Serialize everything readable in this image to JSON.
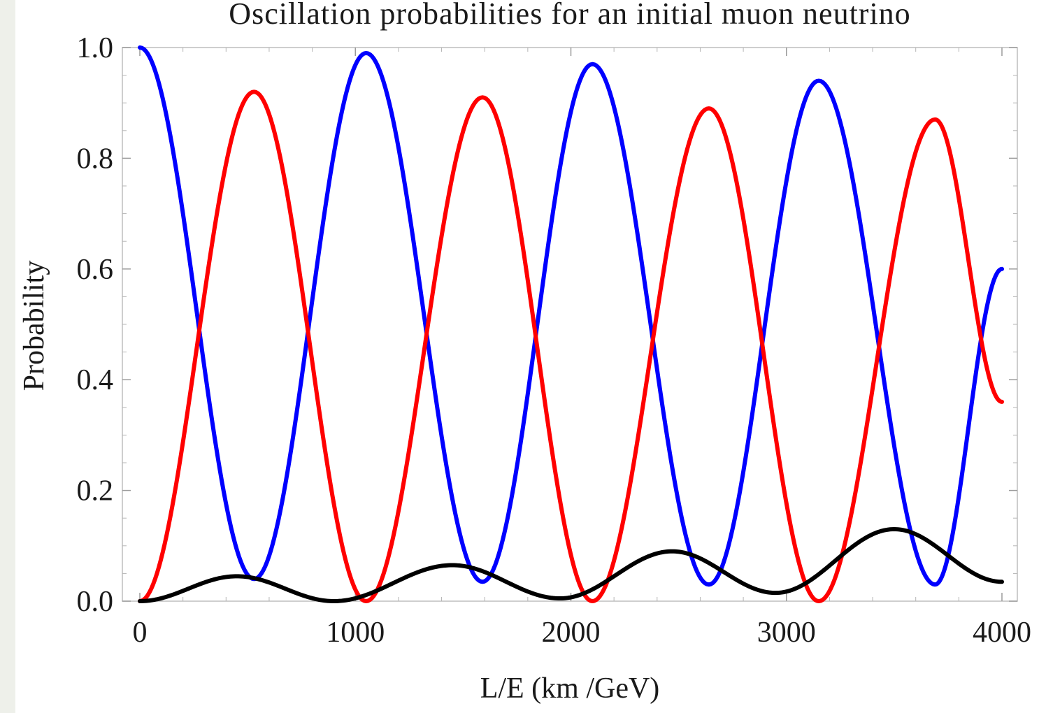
{
  "chart_data": {
    "type": "line",
    "title": "Oscillation probabilities for an initial muon neutrino",
    "xlabel": "L/E (km /GeV)",
    "ylabel": "Probability",
    "xlim": [
      0,
      4000
    ],
    "ylim": [
      0,
      1.0
    ],
    "x_ticks": [
      "0",
      "1000",
      "2000",
      "3000",
      "4000"
    ],
    "y_ticks": [
      "0.0",
      "0.2",
      "0.4",
      "0.6",
      "0.8",
      "1.0"
    ],
    "grid": false,
    "legend": "none",
    "colors": [
      "#0000ff",
      "#ff0000",
      "#000000"
    ],
    "series": [
      {
        "color": "#0000ff",
        "x": [
          0,
          530,
          1050,
          1590,
          2100,
          2640,
          3150,
          3690,
          4000
        ],
        "y": [
          1.0,
          0.04,
          0.99,
          0.035,
          0.97,
          0.03,
          0.94,
          0.03,
          0.6
        ]
      },
      {
        "color": "#ff0000",
        "x": [
          0,
          530,
          1050,
          1590,
          2100,
          2640,
          3150,
          3690,
          4000
        ],
        "y": [
          0.0,
          0.92,
          0.0,
          0.91,
          0.0,
          0.89,
          0.0,
          0.87,
          0.36
        ]
      },
      {
        "color": "#000000",
        "x": [
          0,
          450,
          900,
          1450,
          1950,
          2470,
          2950,
          3500,
          4000
        ],
        "y": [
          0.0,
          0.045,
          0.0,
          0.065,
          0.005,
          0.09,
          0.015,
          0.13,
          0.035
        ]
      }
    ]
  }
}
